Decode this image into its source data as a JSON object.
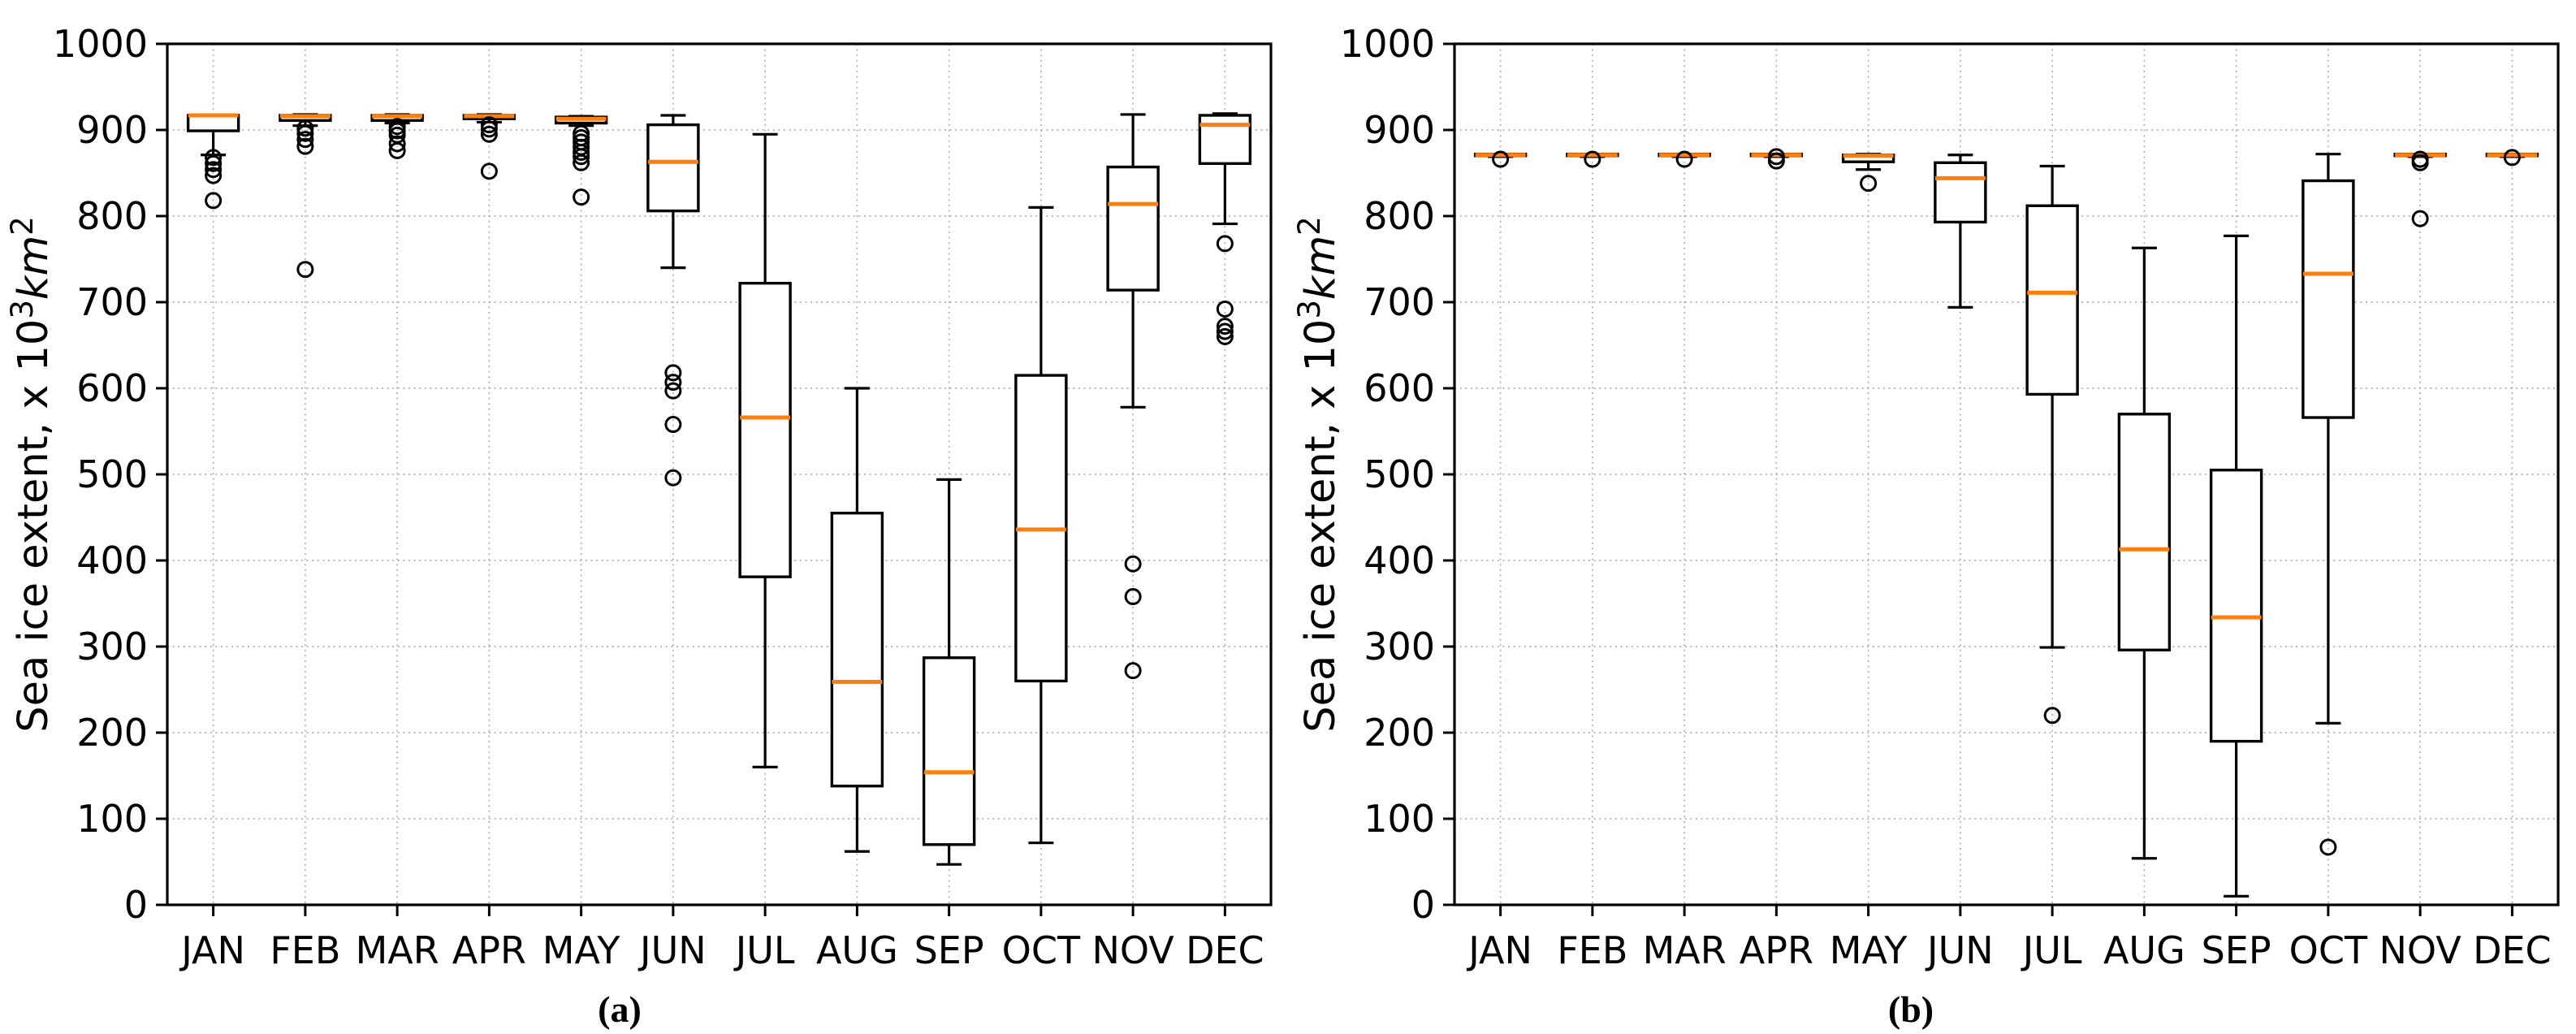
{
  "figure": {
    "background": "#ffffff",
    "axis_color": "#000000",
    "grid_color": "#b0b0b0",
    "box_color": "#000000",
    "median_color": "#ff7f0e",
    "y_ticks": [
      0,
      100,
      200,
      300,
      400,
      500,
      600,
      700,
      800,
      900,
      1000
    ],
    "y_range": [
      0,
      1000
    ],
    "months": [
      "JAN",
      "FEB",
      "MAR",
      "APR",
      "MAY",
      "JUN",
      "JUL",
      "AUG",
      "SEP",
      "OCT",
      "NOV",
      "DEC"
    ],
    "ylabel": {
      "prefix": "Sea ice extent, x 10",
      "sup1": "3",
      "unit_italic": "km",
      "sup2": "2"
    },
    "captions": [
      "(a)",
      "(b)"
    ]
  },
  "chart_data": [
    {
      "type": "boxplot",
      "title": "",
      "label": "(a)",
      "xlabel": "",
      "ylabel": "Sea ice extent, x 10^3 km^2",
      "ylim": [
        0,
        1000
      ],
      "grid": true,
      "categories": [
        "JAN",
        "FEB",
        "MAR",
        "APR",
        "MAY",
        "JUN",
        "JUL",
        "AUG",
        "SEP",
        "OCT",
        "NOV",
        "DEC"
      ],
      "stats": [
        {
          "whislo": 871,
          "q1": 899,
          "med": 917,
          "q3": 917,
          "whishi": 917,
          "fliers": [
            868,
            861,
            854,
            847,
            818
          ]
        },
        {
          "whislo": 905,
          "q1": 911,
          "med": 916,
          "q3": 917,
          "whishi": 918,
          "fliers": [
            902,
            896,
            889,
            881,
            738
          ]
        },
        {
          "whislo": 908,
          "q1": 911,
          "med": 916,
          "q3": 917,
          "whishi": 918,
          "fliers": [
            904,
            899,
            894,
            884,
            876
          ]
        },
        {
          "whislo": 909,
          "q1": 913,
          "med": 916,
          "q3": 917,
          "whishi": 918,
          "fliers": [
            906,
            901,
            895,
            852
          ]
        },
        {
          "whislo": 905,
          "q1": 908,
          "med": 913,
          "q3": 915,
          "whishi": 916,
          "fliers": [
            896,
            891,
            886,
            880,
            874,
            869,
            862,
            822
          ]
        },
        {
          "whislo": 740,
          "q1": 806,
          "med": 863,
          "q3": 906,
          "whishi": 917,
          "fliers": [
            618,
            607,
            597,
            558,
            496
          ]
        },
        {
          "whislo": 160,
          "q1": 381,
          "med": 566,
          "q3": 722,
          "whishi": 895,
          "fliers": []
        },
        {
          "whislo": 62,
          "q1": 138,
          "med": 259,
          "q3": 455,
          "whishi": 600,
          "fliers": []
        },
        {
          "whislo": 47,
          "q1": 70,
          "med": 154,
          "q3": 287,
          "whishi": 494,
          "fliers": []
        },
        {
          "whislo": 72,
          "q1": 260,
          "med": 436,
          "q3": 615,
          "whishi": 810,
          "fliers": []
        },
        {
          "whislo": 578,
          "q1": 714,
          "med": 814,
          "q3": 857,
          "whishi": 918,
          "fliers": [
            396,
            358,
            272
          ]
        },
        {
          "whislo": 791,
          "q1": 861,
          "med": 906,
          "q3": 917,
          "whishi": 919,
          "fliers": [
            768,
            692,
            672,
            666,
            660
          ]
        }
      ]
    },
    {
      "type": "boxplot",
      "title": "",
      "label": "(b)",
      "xlabel": "",
      "ylabel": "Sea ice extent, x 10^3 km^2",
      "ylim": [
        0,
        1000
      ],
      "grid": true,
      "categories": [
        "JAN",
        "FEB",
        "MAR",
        "APR",
        "MAY",
        "JUN",
        "JUL",
        "AUG",
        "SEP",
        "OCT",
        "NOV",
        "DEC"
      ],
      "stats": [
        {
          "whislo": 869,
          "q1": 870,
          "med": 871,
          "q3": 872,
          "whishi": 872,
          "fliers": [
            866
          ]
        },
        {
          "whislo": 869,
          "q1": 870,
          "med": 871,
          "q3": 872,
          "whishi": 872,
          "fliers": [
            866
          ]
        },
        {
          "whislo": 869,
          "q1": 870,
          "med": 871,
          "q3": 872,
          "whishi": 872,
          "fliers": [
            866
          ]
        },
        {
          "whislo": 869,
          "q1": 870,
          "med": 871,
          "q3": 872,
          "whishi": 872,
          "fliers": [
            869,
            864
          ]
        },
        {
          "whislo": 854,
          "q1": 863,
          "med": 870,
          "q3": 871,
          "whishi": 872,
          "fliers": [
            838
          ]
        },
        {
          "whislo": 694,
          "q1": 793,
          "med": 844,
          "q3": 862,
          "whishi": 871,
          "fliers": []
        },
        {
          "whislo": 299,
          "q1": 593,
          "med": 711,
          "q3": 812,
          "whishi": 858,
          "fliers": [
            220
          ]
        },
        {
          "whislo": 54,
          "q1": 296,
          "med": 413,
          "q3": 570,
          "whishi": 763,
          "fliers": []
        },
        {
          "whislo": 10,
          "q1": 190,
          "med": 334,
          "q3": 505,
          "whishi": 777,
          "fliers": []
        },
        {
          "whislo": 211,
          "q1": 566,
          "med": 733,
          "q3": 841,
          "whishi": 872,
          "fliers": [
            67
          ]
        },
        {
          "whislo": 869,
          "q1": 870,
          "med": 871,
          "q3": 872,
          "whishi": 872,
          "fliers": [
            866,
            862,
            797
          ]
        },
        {
          "whislo": 869,
          "q1": 870,
          "med": 871,
          "q3": 872,
          "whishi": 872,
          "fliers": [
            868
          ]
        }
      ]
    }
  ]
}
